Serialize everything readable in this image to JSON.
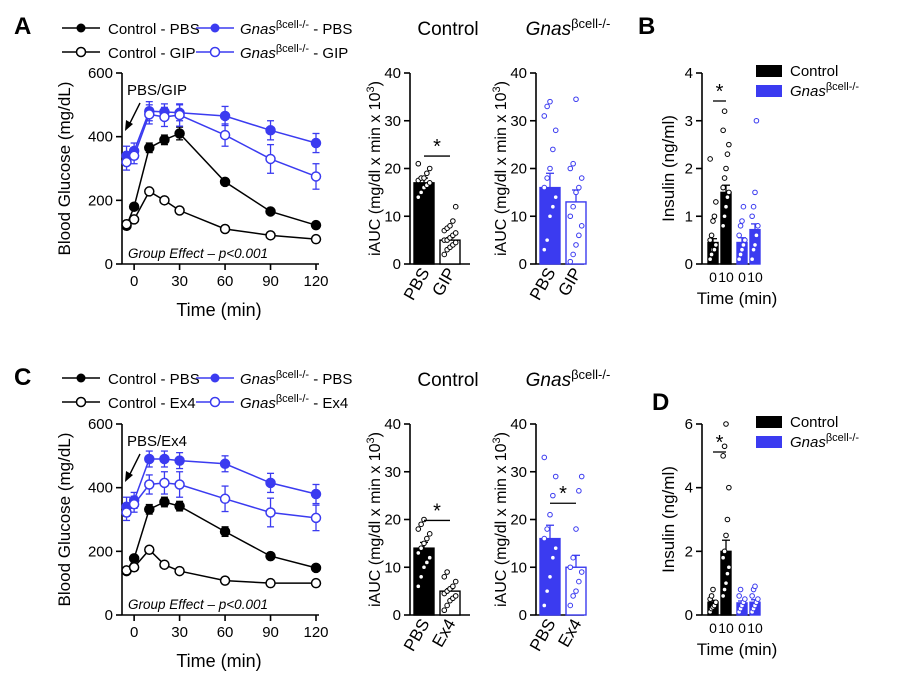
{
  "colors": {
    "control": "#000000",
    "ko": "#3b3bf0",
    "open": "#ffffff"
  },
  "legend_labels": {
    "control_pbs": "Control - PBS",
    "control_gip": "Control - GIP",
    "control_ex4": "Control - Ex4",
    "gnas": "Gnas",
    "gnas_sup": "βcell-/-",
    "pbs_suffix": " - PBS",
    "gip_suffix": " - GIP",
    "ex4_suffix": " - Ex4",
    "control": "Control"
  },
  "chart_data": [
    {
      "id": "A_curve",
      "panel": "A",
      "type": "line",
      "xlabel": "Time (min)",
      "ylabel": "Blood Glucose (mg/dL)",
      "xticks": [
        0,
        30,
        60,
        90,
        120
      ],
      "yticks": [
        0,
        200,
        400,
        600
      ],
      "xlim": [
        -8,
        120
      ],
      "ylim": [
        0,
        600
      ],
      "annotation": "PBS/GIP",
      "note": "Group Effect – p<0.001",
      "series": [
        {
          "name": "Control - PBS",
          "group": "control",
          "filled": true,
          "x": [
            -5,
            0,
            10,
            20,
            30,
            60,
            90,
            120
          ],
          "y": [
            120,
            180,
            365,
            390,
            410,
            258,
            165,
            122
          ],
          "err": [
            10,
            10,
            15,
            15,
            20,
            10,
            8,
            8
          ]
        },
        {
          "name": "Control - GIP",
          "group": "control",
          "filled": false,
          "x": [
            -5,
            0,
            10,
            20,
            30,
            60,
            90,
            120
          ],
          "y": [
            125,
            140,
            228,
            200,
            168,
            110,
            90,
            78
          ],
          "err": [
            5,
            5,
            8,
            8,
            8,
            5,
            5,
            5
          ]
        },
        {
          "name": "Gnas βcell-/- - PBS",
          "group": "ko",
          "filled": true,
          "x": [
            -5,
            0,
            10,
            20,
            30,
            60,
            90,
            120
          ],
          "y": [
            340,
            355,
            480,
            478,
            475,
            465,
            420,
            380
          ],
          "err": [
            30,
            25,
            30,
            25,
            25,
            30,
            30,
            30
          ]
        },
        {
          "name": "Gnas βcell-/- - GIP",
          "group": "ko",
          "filled": false,
          "x": [
            -5,
            0,
            10,
            20,
            30,
            60,
            90,
            120
          ],
          "y": [
            320,
            340,
            470,
            462,
            468,
            405,
            330,
            275
          ],
          "err": [
            25,
            25,
            30,
            30,
            35,
            35,
            45,
            40
          ]
        }
      ]
    },
    {
      "id": "A_auc_ctrl",
      "panel": "A",
      "type": "bar",
      "title": "Control",
      "ylabel": "iAUC (mg/dl x min x 10",
      "ylabel_sup": "3",
      "ylabel_end": ")",
      "categories": [
        "PBS",
        "GIP"
      ],
      "values": [
        17,
        5
      ],
      "err": [
        1,
        0.5
      ],
      "yticks": [
        0,
        10,
        20,
        30,
        40
      ],
      "ylim": [
        0,
        40
      ],
      "sig": "*",
      "group": "control",
      "points": [
        [
          14,
          15,
          16,
          16.5,
          17,
          17.5,
          18,
          18,
          19,
          20,
          21
        ],
        [
          2,
          3,
          3.5,
          4,
          4.5,
          5,
          5,
          5.5,
          6,
          6.5,
          7,
          7.5,
          8,
          9,
          12
        ]
      ]
    },
    {
      "id": "A_auc_ko",
      "panel": "A",
      "type": "bar",
      "title": "Gnas",
      "title_sup": "βcell-/-",
      "ylabel": "iAUC (mg/dl x min x 10",
      "ylabel_sup": "3",
      "ylabel_end": ")",
      "categories": [
        "PBS",
        "GIP"
      ],
      "values": [
        16,
        13
      ],
      "err": [
        3,
        2.5
      ],
      "yticks": [
        0,
        10,
        20,
        30,
        40
      ],
      "ylim": [
        0,
        40
      ],
      "group": "ko",
      "points": [
        [
          3,
          5,
          10,
          12,
          14,
          16,
          18,
          20,
          24,
          28,
          31,
          33,
          34
        ],
        [
          0.5,
          2,
          4,
          6,
          8,
          10,
          12,
          15,
          16,
          18,
          20,
          21,
          34.5
        ]
      ]
    },
    {
      "id": "B_insulin",
      "panel": "B",
      "type": "bar",
      "ylabel": "Insulin (ng/ml)",
      "xlabel": "Time (min)",
      "categories": [
        "0",
        "10",
        "0",
        "10"
      ],
      "values": [
        0.45,
        1.5,
        0.45,
        0.72
      ],
      "err": [
        0.08,
        0.15,
        0.1,
        0.12
      ],
      "groups": [
        "control",
        "control",
        "ko",
        "ko"
      ],
      "yticks": [
        0,
        1,
        2,
        3,
        4
      ],
      "ylim": [
        0,
        4
      ],
      "sig": "*",
      "legend": [
        "Control",
        "Gnas βcell-/-"
      ],
      "points": [
        [
          0.1,
          0.2,
          0.3,
          0.3,
          0.4,
          0.5,
          0.6,
          0.9,
          1.0,
          1.3,
          2.2
        ],
        [
          0.8,
          1.0,
          1.2,
          1.4,
          1.5,
          1.6,
          1.8,
          2.0,
          2.3,
          2.5,
          2.8,
          3.2
        ],
        [
          0.1,
          0.2,
          0.3,
          0.4,
          0.5,
          0.6,
          0.8,
          0.9,
          1.2
        ],
        [
          0.1,
          0.3,
          0.4,
          0.6,
          0.8,
          1.0,
          1.2,
          1.5,
          3.0
        ]
      ]
    },
    {
      "id": "C_curve",
      "panel": "C",
      "type": "line",
      "xlabel": "Time (min)",
      "ylabel": "Blood Glucose (mg/dL)",
      "xticks": [
        0,
        30,
        60,
        90,
        120
      ],
      "yticks": [
        0,
        200,
        400,
        600
      ],
      "xlim": [
        -8,
        120
      ],
      "ylim": [
        0,
        600
      ],
      "annotation": "PBS/Ex4",
      "note": "Group Effect – p<0.001",
      "series": [
        {
          "name": "Control - PBS",
          "group": "control",
          "filled": true,
          "x": [
            -5,
            0,
            10,
            20,
            30,
            60,
            90,
            120
          ],
          "y": [
            138,
            178,
            332,
            355,
            342,
            262,
            185,
            148
          ],
          "err": [
            8,
            10,
            15,
            15,
            15,
            15,
            10,
            8
          ]
        },
        {
          "name": "Control - Ex4",
          "group": "control",
          "filled": false,
          "x": [
            -5,
            0,
            10,
            20,
            30,
            60,
            90,
            120
          ],
          "y": [
            140,
            150,
            205,
            158,
            138,
            108,
            100,
            100
          ],
          "err": [
            5,
            5,
            8,
            5,
            5,
            5,
            5,
            5
          ]
        },
        {
          "name": "Gnas βcell-/- - PBS",
          "group": "ko",
          "filled": true,
          "x": [
            -5,
            0,
            10,
            20,
            30,
            60,
            90,
            120
          ],
          "y": [
            340,
            360,
            490,
            490,
            485,
            475,
            415,
            380
          ],
          "err": [
            30,
            25,
            25,
            25,
            25,
            25,
            30,
            30
          ]
        },
        {
          "name": "Gnas βcell-/- - Ex4",
          "group": "ko",
          "filled": false,
          "x": [
            -5,
            0,
            10,
            20,
            30,
            60,
            90,
            120
          ],
          "y": [
            322,
            348,
            410,
            415,
            410,
            365,
            322,
            305
          ],
          "err": [
            25,
            25,
            30,
            35,
            40,
            40,
            45,
            40
          ]
        }
      ]
    },
    {
      "id": "C_auc_ctrl",
      "panel": "C",
      "type": "bar",
      "title": "Control",
      "ylabel": "iAUC (mg/dl x min x 10",
      "ylabel_sup": "3",
      "ylabel_end": ")",
      "categories": [
        "PBS",
        "Ex4"
      ],
      "values": [
        14,
        5
      ],
      "err": [
        1.2,
        0.5
      ],
      "yticks": [
        0,
        10,
        20,
        30,
        40
      ],
      "ylim": [
        0,
        40
      ],
      "sig": "*",
      "group": "control",
      "points": [
        [
          6,
          8,
          10,
          11,
          12,
          13,
          14,
          15,
          16,
          17,
          18,
          19,
          20
        ],
        [
          1,
          2,
          3,
          3.5,
          4,
          4.5,
          5,
          5.5,
          6,
          7,
          8,
          9
        ]
      ]
    },
    {
      "id": "C_auc_ko",
      "panel": "C",
      "type": "bar",
      "title": "Gnas",
      "title_sup": "βcell-/-",
      "ylabel": "iAUC (mg/dl x min x 10",
      "ylabel_sup": "3",
      "ylabel_end": ")",
      "categories": [
        "PBS",
        "Ex4"
      ],
      "values": [
        16,
        10
      ],
      "err": [
        2.8,
        2.5
      ],
      "yticks": [
        0,
        10,
        20,
        30,
        40
      ],
      "ylim": [
        0,
        40
      ],
      "sig": "*",
      "group": "ko",
      "points": [
        [
          2,
          5,
          8,
          12,
          14,
          16,
          18,
          21,
          25,
          29,
          33
        ],
        [
          2,
          4,
          5,
          7,
          9,
          10,
          12,
          18,
          26,
          29
        ]
      ]
    },
    {
      "id": "D_insulin",
      "panel": "D",
      "type": "bar",
      "ylabel": "Insulin (ng/ml)",
      "xlabel": "Time (min)",
      "categories": [
        "0",
        "10",
        "0",
        "10"
      ],
      "values": [
        0.4,
        2.0,
        0.38,
        0.4
      ],
      "err": [
        0.06,
        0.35,
        0.06,
        0.08
      ],
      "groups": [
        "control",
        "control",
        "ko",
        "ko"
      ],
      "yticks": [
        0,
        2,
        4,
        6
      ],
      "ylim": [
        0,
        6
      ],
      "sig": "*",
      "legend": [
        "Control",
        "Gnas βcell-/-"
      ],
      "points": [
        [
          0.1,
          0.2,
          0.25,
          0.3,
          0.4,
          0.5,
          0.6,
          0.8
        ],
        [
          0.6,
          0.8,
          1.0,
          1.3,
          1.5,
          1.8,
          2.0,
          2.5,
          3.0,
          4.0,
          5.0,
          5.3,
          6.0
        ],
        [
          0.1,
          0.2,
          0.3,
          0.4,
          0.5,
          0.6,
          0.8
        ],
        [
          0.1,
          0.2,
          0.3,
          0.4,
          0.5,
          0.6,
          0.8,
          0.9
        ]
      ]
    }
  ]
}
